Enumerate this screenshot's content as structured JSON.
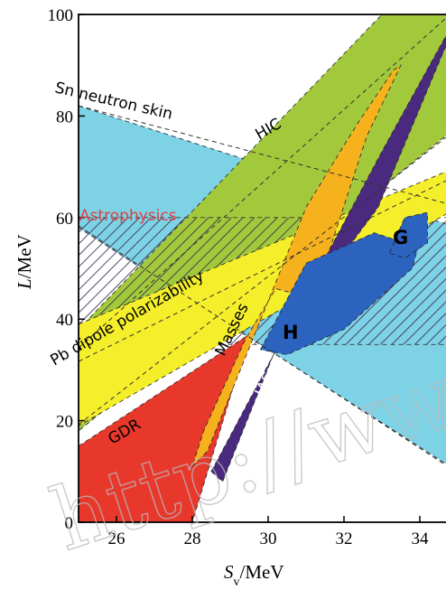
{
  "chart_data": {
    "type": "area",
    "xlabel": "S_v/MeV",
    "ylabel": "L/MeV",
    "xlim": [
      25,
      35
    ],
    "ylim": [
      0,
      100
    ],
    "x_ticks": [
      "26",
      "28",
      "30",
      "32",
      "34"
    ],
    "y_ticks": [
      "0",
      "20",
      "40",
      "60",
      "80",
      "100"
    ],
    "grid": false,
    "regions": [
      {
        "name": "Sn neutron skin",
        "color": "#7ed2e6",
        "pattern": "solid",
        "polygon": [
          [
            25,
            82
          ],
          [
            35,
            58
          ],
          [
            35,
            10
          ],
          [
            25,
            58
          ]
        ]
      },
      {
        "name": "HIC",
        "color": "#a2c93c",
        "pattern": "solid",
        "polygon": [
          [
            25,
            38
          ],
          [
            33,
            100
          ],
          [
            35,
            100
          ],
          [
            35,
            78
          ],
          [
            25,
            18
          ]
        ]
      },
      {
        "name": "Astrophysics",
        "color": "#e8453c",
        "pattern": "hatched",
        "polygon": [
          [
            25,
            60
          ],
          [
            35,
            60
          ],
          [
            35,
            35
          ],
          [
            25,
            35
          ]
        ]
      },
      {
        "name": "Pb dipole polarizability",
        "color": "#f4ef2a",
        "pattern": "solid",
        "polygon": [
          [
            25,
            39
          ],
          [
            35,
            70
          ],
          [
            35,
            62
          ],
          [
            25,
            19
          ]
        ]
      },
      {
        "name": "GDR",
        "color": "#e8382c",
        "pattern": "solid",
        "polygon": [
          [
            25,
            15
          ],
          [
            29.5,
            37
          ],
          [
            28,
            0
          ],
          [
            25,
            0
          ]
        ]
      },
      {
        "name": "Masses",
        "color": "#f5b21c",
        "pattern": "solid",
        "polygon": [
          [
            28,
            11
          ],
          [
            28.4,
            14
          ],
          [
            31,
            62
          ],
          [
            31.9,
            73
          ],
          [
            32.4,
            79
          ],
          [
            33.3,
            89
          ],
          [
            33.5,
            90
          ],
          [
            32.6,
            76
          ],
          [
            31.2,
            44
          ],
          [
            30.7,
            45
          ],
          [
            30.2,
            46
          ],
          [
            29.4,
            36
          ],
          [
            28.3,
            18
          ],
          [
            28,
            11
          ]
        ]
      },
      {
        "name": "IAS",
        "color": "#4a2a7e",
        "pattern": "solid",
        "polygon": [
          [
            28.5,
            10
          ],
          [
            33,
            73
          ],
          [
            35,
            100
          ],
          [
            34.7,
            94
          ],
          [
            32.9,
            62
          ],
          [
            30.3,
            36
          ],
          [
            28.8,
            8
          ]
        ]
      },
      {
        "name": "H",
        "color": "#2c63bf",
        "pattern": "solid",
        "polygon": [
          [
            29.8,
            34
          ],
          [
            31,
            51
          ],
          [
            32.8,
            57
          ],
          [
            33.6,
            55
          ],
          [
            34.2,
            61
          ],
          [
            33.8,
            50
          ],
          [
            32,
            38
          ],
          [
            30.5,
            33
          ]
        ]
      },
      {
        "name": "G",
        "color": "#2c63bf",
        "pattern": "solid",
        "polygon": [
          [
            33.2,
            53
          ],
          [
            33.6,
            60
          ],
          [
            34.2,
            61
          ],
          [
            34.2,
            55
          ],
          [
            33.6,
            52
          ]
        ]
      }
    ],
    "annotations": [
      "Sn neutron skin",
      "HIC",
      "Astrophysics",
      "Pb dipole polarizability",
      "GDR",
      "Masses",
      "IAS",
      "H",
      "G"
    ]
  },
  "watermark": "http://ww",
  "colors": {
    "axis": "#000000",
    "label_red": "#e04040"
  }
}
